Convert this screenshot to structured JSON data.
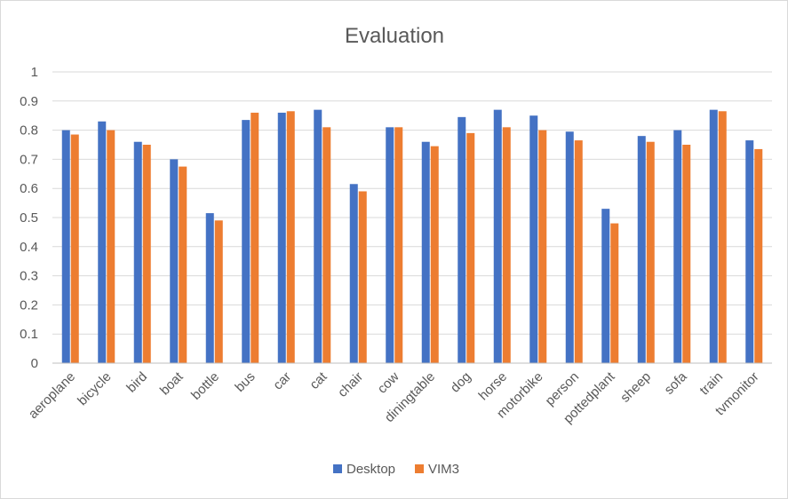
{
  "chart_data": {
    "type": "bar",
    "title": "Evaluation",
    "xlabel": "",
    "ylabel": "",
    "ylim": [
      0,
      1
    ],
    "yticks": [
      "0",
      "0.1",
      "0.2",
      "0.3",
      "0.4",
      "0.5",
      "0.6",
      "0.7",
      "0.8",
      "0.9",
      "1"
    ],
    "grid": true,
    "legend_position": "bottom",
    "categories": [
      "aeroplane",
      "bicycle",
      "bird",
      "boat",
      "bottle",
      "bus",
      "car",
      "cat",
      "chair",
      "cow",
      "diningtable",
      "dog",
      "horse",
      "motorbike",
      "person",
      "pottedplant",
      "sheep",
      "sofa",
      "train",
      "tvmonitor"
    ],
    "series": [
      {
        "name": "Desktop",
        "color": "#4472C4",
        "values": [
          0.8,
          0.83,
          0.76,
          0.7,
          0.515,
          0.835,
          0.86,
          0.87,
          0.615,
          0.81,
          0.76,
          0.845,
          0.87,
          0.85,
          0.795,
          0.53,
          0.78,
          0.8,
          0.87,
          0.765
        ]
      },
      {
        "name": "VIM3",
        "color": "#ED7D31",
        "values": [
          0.785,
          0.8,
          0.75,
          0.675,
          0.49,
          0.86,
          0.865,
          0.81,
          0.59,
          0.81,
          0.745,
          0.79,
          0.81,
          0.8,
          0.765,
          0.48,
          0.76,
          0.75,
          0.865,
          0.735
        ]
      }
    ]
  }
}
